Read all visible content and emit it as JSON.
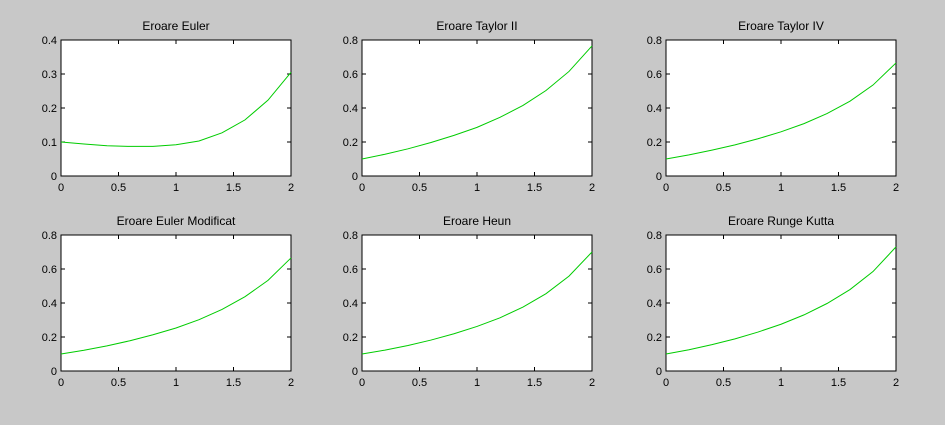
{
  "chart_data": [
    {
      "type": "line",
      "title": "Eroare Euler",
      "xlabel": "",
      "ylabel": "",
      "xlim": [
        0,
        2
      ],
      "ylim": [
        0,
        0.4
      ],
      "xticks": [
        "0",
        "0.5",
        "1",
        "1.5",
        "2"
      ],
      "yticks": [
        "0",
        "0.1",
        "0.2",
        "0.3",
        "0.4"
      ],
      "grid": false,
      "series": [
        {
          "color": "#00cc00",
          "x": [
            0,
            0.2,
            0.4,
            0.6,
            0.8,
            1.0,
            1.2,
            1.4,
            1.6,
            1.8,
            2.0
          ],
          "y": [
            0.1,
            0.094,
            0.089,
            0.087,
            0.087,
            0.092,
            0.103,
            0.127,
            0.165,
            0.223,
            0.305
          ]
        }
      ]
    },
    {
      "type": "line",
      "title": "Eroare Taylor II",
      "xlabel": "",
      "ylabel": "",
      "xlim": [
        0,
        2
      ],
      "ylim": [
        0,
        0.8
      ],
      "xticks": [
        "0",
        "0.5",
        "1",
        "1.5",
        "2"
      ],
      "yticks": [
        "0",
        "0.2",
        "0.4",
        "0.6",
        "0.8"
      ],
      "grid": false,
      "series": [
        {
          "color": "#00cc00",
          "x": [
            0,
            0.2,
            0.4,
            0.6,
            0.8,
            1.0,
            1.2,
            1.4,
            1.6,
            1.8,
            2.0
          ],
          "y": [
            0.1,
            0.128,
            0.16,
            0.197,
            0.239,
            0.286,
            0.345,
            0.415,
            0.503,
            0.615,
            0.765
          ]
        }
      ]
    },
    {
      "type": "line",
      "title": "Eroare Taylor IV",
      "xlabel": "",
      "ylabel": "",
      "xlim": [
        0,
        2
      ],
      "ylim": [
        0,
        0.8
      ],
      "xticks": [
        "0",
        "0.5",
        "1",
        "1.5",
        "2"
      ],
      "yticks": [
        "0",
        "0.2",
        "0.4",
        "0.6",
        "0.8"
      ],
      "grid": false,
      "series": [
        {
          "color": "#00cc00",
          "x": [
            0,
            0.2,
            0.4,
            0.6,
            0.8,
            1.0,
            1.2,
            1.4,
            1.6,
            1.8,
            2.0
          ],
          "y": [
            0.1,
            0.124,
            0.152,
            0.183,
            0.219,
            0.26,
            0.308,
            0.367,
            0.44,
            0.535,
            0.665
          ]
        }
      ]
    },
    {
      "type": "line",
      "title": "Eroare Euler Modificat",
      "xlabel": "",
      "ylabel": "",
      "xlim": [
        0,
        2
      ],
      "ylim": [
        0,
        0.8
      ],
      "xticks": [
        "0",
        "0.5",
        "1",
        "1.5",
        "2"
      ],
      "yticks": [
        "0",
        "0.2",
        "0.4",
        "0.6",
        "0.8"
      ],
      "grid": false,
      "series": [
        {
          "color": "#00cc00",
          "x": [
            0,
            0.2,
            0.4,
            0.6,
            0.8,
            1.0,
            1.2,
            1.4,
            1.6,
            1.8,
            2.0
          ],
          "y": [
            0.1,
            0.122,
            0.148,
            0.178,
            0.213,
            0.253,
            0.302,
            0.362,
            0.437,
            0.533,
            0.665
          ]
        }
      ]
    },
    {
      "type": "line",
      "title": "Eroare Heun",
      "xlabel": "",
      "ylabel": "",
      "xlim": [
        0,
        2
      ],
      "ylim": [
        0,
        0.8
      ],
      "xticks": [
        "0",
        "0.5",
        "1",
        "1.5",
        "2"
      ],
      "yticks": [
        "0",
        "0.2",
        "0.4",
        "0.6",
        "0.8"
      ],
      "grid": false,
      "series": [
        {
          "color": "#00cc00",
          "x": [
            0,
            0.2,
            0.4,
            0.6,
            0.8,
            1.0,
            1.2,
            1.4,
            1.6,
            1.8,
            2.0
          ],
          "y": [
            0.1,
            0.123,
            0.15,
            0.182,
            0.219,
            0.262,
            0.313,
            0.376,
            0.455,
            0.558,
            0.7
          ]
        }
      ]
    },
    {
      "type": "line",
      "title": "Eroare Runge Kutta",
      "xlabel": "",
      "ylabel": "",
      "xlim": [
        0,
        2
      ],
      "ylim": [
        0,
        0.8
      ],
      "xticks": [
        "0",
        "0.5",
        "1",
        "1.5",
        "2"
      ],
      "yticks": [
        "0",
        "0.2",
        "0.4",
        "0.6",
        "0.8"
      ],
      "grid": false,
      "series": [
        {
          "color": "#00cc00",
          "x": [
            0,
            0.2,
            0.4,
            0.6,
            0.8,
            1.0,
            1.2,
            1.4,
            1.6,
            1.8,
            2.0
          ],
          "y": [
            0.1,
            0.125,
            0.155,
            0.189,
            0.229,
            0.275,
            0.33,
            0.397,
            0.479,
            0.585,
            0.73
          ]
        }
      ]
    }
  ]
}
